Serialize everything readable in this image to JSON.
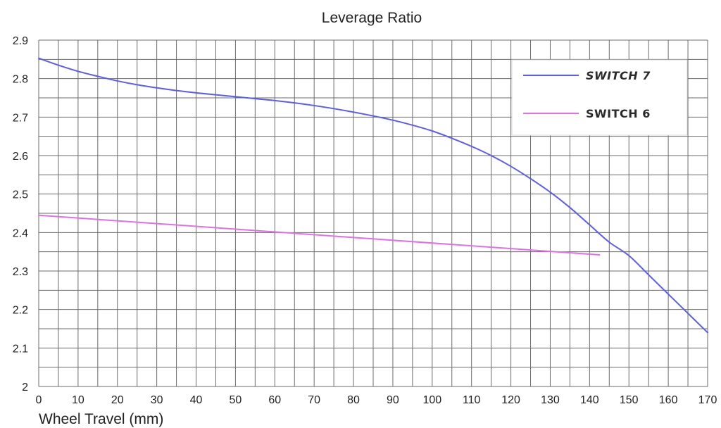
{
  "chart_data": {
    "type": "line",
    "title": "Leverage Ratio",
    "xlabel": "Wheel Travel (mm)",
    "ylabel": "",
    "xlim": [
      0,
      170
    ],
    "ylim": [
      2,
      2.9
    ],
    "x_ticks": [
      0,
      10,
      20,
      30,
      40,
      50,
      60,
      70,
      80,
      90,
      100,
      110,
      120,
      130,
      140,
      150,
      160,
      170
    ],
    "y_ticks": [
      2,
      2.1,
      2.2,
      2.3,
      2.4,
      2.5,
      2.6,
      2.7,
      2.8,
      2.9
    ],
    "x_tick_labels": [
      "0",
      "10",
      "20",
      "30",
      "40",
      "50",
      "60",
      "70",
      "80",
      "90",
      "100",
      "110",
      "120",
      "130",
      "140",
      "150",
      "160",
      "170"
    ],
    "y_tick_labels": [
      "2",
      "2.1",
      "2.2",
      "2.3",
      "2.4",
      "2.5",
      "2.6",
      "2.7",
      "2.8",
      "2.9"
    ],
    "grid": true,
    "legend_position": "top-right",
    "series": [
      {
        "name": "SWITCH 7",
        "color": "#5c5cf0",
        "x": [
          0,
          5,
          10,
          15,
          20,
          25,
          30,
          35,
          40,
          45,
          50,
          55,
          60,
          65,
          70,
          75,
          80,
          85,
          90,
          95,
          100,
          105,
          110,
          115,
          120,
          125,
          130,
          135,
          140,
          145,
          150,
          155,
          160,
          165,
          170
        ],
        "y": [
          2.853,
          2.835,
          2.819,
          2.806,
          2.794,
          2.784,
          2.776,
          2.769,
          2.763,
          2.758,
          2.753,
          2.748,
          2.743,
          2.737,
          2.73,
          2.722,
          2.713,
          2.703,
          2.692,
          2.679,
          2.664,
          2.645,
          2.624,
          2.6,
          2.572,
          2.54,
          2.505,
          2.465,
          2.42,
          2.375,
          2.34,
          2.29,
          2.24,
          2.19,
          2.14
        ]
      },
      {
        "name": "SWITCH 6",
        "color": "#e070e8",
        "x": [
          0,
          142.5
        ],
        "y": [
          2.445,
          2.342
        ]
      }
    ]
  }
}
